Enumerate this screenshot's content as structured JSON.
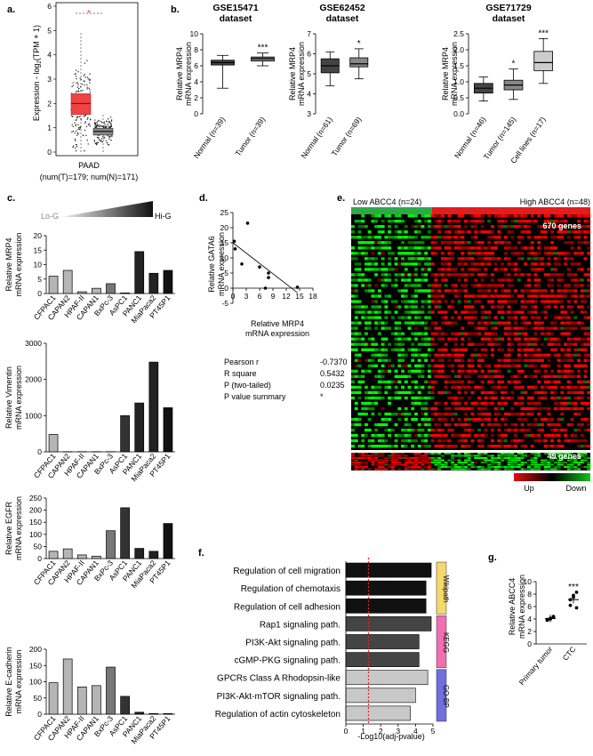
{
  "panels": {
    "a": {
      "label": "a.",
      "ylabel": "Expression - log2(TPM + 1)",
      "ylabel_main": "Expression - log",
      "ylabel_sub": "2",
      "ylabel_tail": "(TPM + 1)",
      "yticks": [
        "0",
        "1",
        "2",
        "3",
        "4",
        "5",
        "6"
      ],
      "star": "*",
      "xlabel": "PAAD",
      "sublabel": "(num(T)=179; num(N)=171)"
    },
    "b": {
      "label": "b.",
      "datasets": [
        {
          "title1": "GSE15471",
          "title2": "dataset",
          "ylabel1": "Relative MRP4",
          "ylabel2": "mRNA expression",
          "yticks": [
            "0",
            "2",
            "4",
            "6",
            "8",
            "10"
          ],
          "groups": [
            "Normal (n=39)",
            "Tumor  (n=39)"
          ],
          "sig": [
            "",
            "***"
          ]
        },
        {
          "title1": "GSE62452",
          "title2": "dataset",
          "ylabel1": "Relative MRP4",
          "ylabel2": "mRNA expression",
          "yticks": [
            "3",
            "4",
            "5",
            "6",
            "7"
          ],
          "groups": [
            "Normal (n=61)",
            "Tumor  (n=69)"
          ],
          "sig": [
            "",
            "*"
          ]
        },
        {
          "title1": "GSE71729",
          "title2": "dataset",
          "ylabel1": "Relative MRP4",
          "ylabel2": "mRNA expression",
          "yticks": [
            "0.0",
            "0.5",
            "1.0",
            "1.5",
            "2.0",
            "2.5"
          ],
          "groups": [
            "Normal (n=46)",
            "Tumor (n=145)",
            "Cell lines (n=17)"
          ],
          "sig": [
            "",
            "*",
            "***"
          ]
        }
      ]
    },
    "c": {
      "label": "c.",
      "lo": "Lo-G",
      "hi": "Hi-G",
      "cell_lines": [
        "CFPAC1",
        "CAPAN2",
        "HPAF-II",
        "CAPAN1",
        "BxPc-3",
        "AsPC1",
        "PANC1",
        "MiaPaca2",
        "PT45P1"
      ]
    },
    "d": {
      "label": "d.",
      "ylabel1": "Relative GATA6",
      "ylabel2": "mRNA expression",
      "xlabel1": "Relative MRP4",
      "xlabel2": "mRNA expression",
      "xticks": [
        "0",
        "3",
        "6",
        "9",
        "12",
        "15",
        "18"
      ],
      "yticks": [
        "-5",
        "0",
        "5",
        "10",
        "15",
        "20",
        "25"
      ],
      "stats": [
        {
          "k": "Pearson r",
          "v": "-0.7370"
        },
        {
          "k": "R square",
          "v": "0.5432"
        },
        {
          "k": "P (two-tailed)",
          "v": "0.0235"
        },
        {
          "k": "P value summary",
          "v": "*"
        }
      ]
    },
    "e": {
      "label": "e.",
      "low_label": "Low ABCC4 (n=24)",
      "high_label": "High ABCC4 (n=48)",
      "genes_up": "670 genes",
      "genes_down": "49 genes",
      "legend_up": "Up",
      "legend_down": "Down",
      "colors": {
        "low": "#2fa84a",
        "high": "#e11d1d",
        "up": "#e01010",
        "down": "#12c21a"
      }
    },
    "f": {
      "label": "f.",
      "xlabel": "-Log10(adj-pvalue)",
      "xticks": [
        "0",
        "1",
        "2",
        "3",
        "4",
        "5"
      ],
      "categories": [
        {
          "name": "Wikipath",
          "color": "#f5d86a"
        },
        {
          "name": "KEGG",
          "color": "#f06fb0"
        },
        {
          "name": "GO-BP",
          "color": "#6f6fe0"
        }
      ]
    },
    "g": {
      "label": "g.",
      "ylabel1": "Relative ABCC4",
      "ylabel2": "mRNA expression",
      "yticks": [
        "0",
        "2",
        "4",
        "6",
        "8",
        "10"
      ],
      "groups": [
        "Primary tumor",
        "CTC"
      ],
      "sig": "***"
    }
  },
  "chart_data": [
    {
      "panel": "c1",
      "type": "bar",
      "ylabel": "Relative MRP4 mRNA expression",
      "categories": [
        "CFPAC1",
        "CAPAN2",
        "HPAF-II",
        "CAPAN1",
        "BxPc-3",
        "AsPC1",
        "PANC1",
        "MiaPaca2",
        "PT45P1"
      ],
      "values": [
        6,
        8,
        0.6,
        1.8,
        3.4,
        0.2,
        14.5,
        7,
        8
      ],
      "ylim": [
        0,
        20
      ],
      "yticks": [
        "0",
        "5",
        "10",
        "15",
        "20"
      ]
    },
    {
      "panel": "c2",
      "type": "bar",
      "ylabel": "Relative Vimentin mRNA expression",
      "categories": [
        "CFPAC1",
        "CAPAN2",
        "HPAF-II",
        "CAPAN1",
        "BxPc-3",
        "AsPC1",
        "PANC1",
        "MiaPaca2",
        "PT45P1"
      ],
      "values": [
        480,
        5,
        5,
        5,
        5,
        1000,
        1350,
        2480,
        1220
      ],
      "ylim": [
        0,
        3000
      ],
      "yticks": [
        "0",
        "1000",
        "2000",
        "3000"
      ]
    },
    {
      "panel": "c3",
      "type": "bar",
      "ylabel": "Relative EGFR mRNA expression",
      "categories": [
        "CFPAC1",
        "CAPAN2",
        "HPAF-II",
        "CAPAN1",
        "BxPc-3",
        "AsPC1",
        "PANC1",
        "MiaPaca2",
        "PT45P1"
      ],
      "values": [
        30,
        40,
        15,
        10,
        115,
        210,
        42,
        30,
        145
      ],
      "ylim": [
        0,
        250
      ],
      "yticks": [
        "0",
        "50",
        "100",
        "150",
        "200",
        "250"
      ]
    },
    {
      "panel": "c4",
      "type": "bar",
      "ylabel": "Relative E-cadherin mRNA expression",
      "categories": [
        "CFPAC1",
        "CAPAN2",
        "HPAF-II",
        "CAPAN1",
        "BxPc-3",
        "AsPC1",
        "PANC1",
        "MiaPaca2",
        "PT45P1"
      ],
      "values": [
        97,
        170,
        84,
        88,
        145,
        55,
        6,
        2,
        2
      ],
      "ylim": [
        0,
        200
      ],
      "yticks": [
        "0",
        "50",
        "100",
        "150",
        "200"
      ]
    },
    {
      "panel": "d",
      "type": "scatter",
      "xlabel": "Relative MRP4 mRNA expression",
      "ylabel": "Relative GATA6 mRNA expression",
      "x": [
        0.3,
        0.5,
        2,
        3.3,
        6,
        7.3,
        8,
        8,
        14.5
      ],
      "y": [
        15.5,
        13,
        8,
        21.5,
        7,
        0,
        5,
        3.5,
        0.3
      ],
      "xlim": [
        0,
        18
      ],
      "ylim": [
        -5,
        25
      ]
    },
    {
      "panel": "f",
      "type": "bar",
      "xlabel": "-Log10(adj-pvalue)",
      "categories": [
        "Regulation of cell migration",
        "Regulation of chemotaxis",
        "Regulation of cell adhesion",
        "Rap1 signaling path.",
        "PI3K-Akt signaling path.",
        "cGMP-PKG signaling path.",
        "GPCRs Class A Rhodopsin-like",
        "PI3K-Akt-mTOR signaling path.",
        "Regulation of actin cytoskeleton"
      ],
      "values": [
        4.9,
        4.6,
        4.6,
        4.9,
        4.2,
        4.2,
        4.7,
        4.0,
        3.7
      ],
      "group": [
        "Wikipath",
        "Wikipath",
        "Wikipath",
        "KEGG",
        "KEGG",
        "KEGG",
        "GO-BP",
        "GO-BP",
        "GO-BP"
      ],
      "threshold": 1.3,
      "xlim": [
        0,
        5
      ]
    },
    {
      "panel": "g",
      "type": "scatter",
      "ylabel": "Relative ABCC4 mRNA expression",
      "categories": [
        "Primary tumor",
        "CTC"
      ],
      "series": [
        {
          "name": "Primary tumor",
          "values": [
            3.8,
            4.1,
            4.3,
            3.9,
            4.0,
            4.4
          ]
        },
        {
          "name": "CTC",
          "values": [
            6.2,
            7.5,
            8.3,
            7.1,
            7.8,
            5.8
          ]
        }
      ],
      "ylim": [
        0,
        10
      ]
    }
  ]
}
